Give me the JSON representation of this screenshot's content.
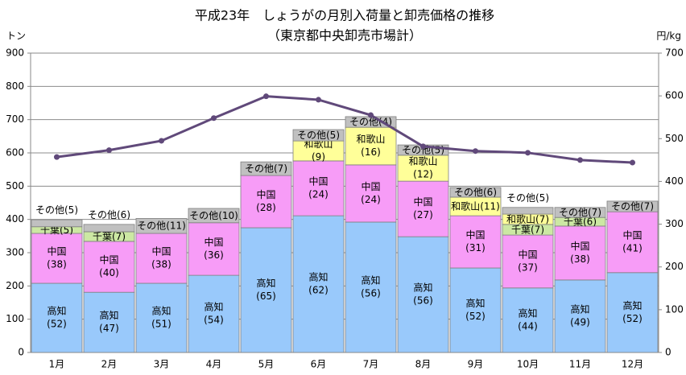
{
  "chart_data": {
    "type": "stacked-bar-line",
    "title": "平成23年　しょうがの月別入荷量と卸売価格の推移",
    "subtitle": "（東京都中央卸売市場計）",
    "y_label": "トン",
    "y2_label": "円/kg",
    "categories": [
      "1月",
      "2月",
      "3月",
      "4月",
      "5月",
      "6月",
      "7月",
      "8月",
      "9月",
      "10月",
      "11月",
      "12月"
    ],
    "series": [
      {
        "name": "高知",
        "color": "#99c9fb",
        "values": [
          208,
          181,
          208,
          232,
          375,
          411,
          392,
          348,
          254,
          194,
          218,
          240
        ],
        "share_labels": [
          "(52)",
          "(47)",
          "(51)",
          "(54)",
          "(65)",
          "(62)",
          "(56)",
          "(56)",
          "(52)",
          "(44)",
          "(49)",
          "(52)"
        ]
      },
      {
        "name": "中国",
        "color": "#f79cf7",
        "values": [
          150,
          153,
          150,
          158,
          157,
          165,
          172,
          167,
          157,
          159,
          162,
          183
        ],
        "share_labels": [
          "(38)",
          "(40)",
          "(38)",
          "(36)",
          "(28)",
          "(24)",
          "(24)",
          "(27)",
          "(31)",
          "(37)",
          "(38)",
          "(41)"
        ]
      },
      {
        "name": "千葉",
        "color": "#cce8a3",
        "values": [
          20,
          29,
          null,
          null,
          null,
          null,
          null,
          null,
          null,
          32,
          26,
          null
        ],
        "share_labels": [
          "(5)",
          "(7)",
          null,
          null,
          null,
          null,
          null,
          null,
          null,
          "(7)",
          "(6)",
          null
        ]
      },
      {
        "name": "和歌山",
        "color": "#ffff99",
        "values": [
          null,
          null,
          null,
          null,
          null,
          60,
          113,
          78,
          56,
          31,
          null,
          null
        ],
        "share_labels": [
          null,
          null,
          null,
          null,
          null,
          "(9)",
          "(16)",
          "(12)",
          "(11)",
          "(7)",
          null,
          null
        ]
      },
      {
        "name": "その他",
        "color": "#c0c0c0",
        "values": [
          21,
          22,
          45,
          43,
          41,
          34,
          32,
          31,
          29,
          20,
          30,
          32
        ],
        "share_labels": [
          "(5)",
          "(6)",
          "(11)",
          "(10)",
          "(7)",
          "(5)",
          "(4)",
          "(5)",
          "(6)",
          "(5)",
          "(7)",
          "(7)"
        ]
      },
      {
        "color": "#60497a",
        "axis": "y2",
        "values": [
          457,
          473,
          495,
          548,
          599,
          591,
          555,
          482,
          471,
          467,
          450,
          444
        ]
      }
    ],
    "ylim": [
      0,
      900
    ],
    "yticks": [
      0,
      100,
      200,
      300,
      400,
      500,
      600,
      700,
      800,
      900
    ],
    "y2lim": [
      0,
      700
    ],
    "y2ticks": [
      0,
      100,
      200,
      300,
      400,
      500,
      600,
      700
    ],
    "grid": true
  }
}
